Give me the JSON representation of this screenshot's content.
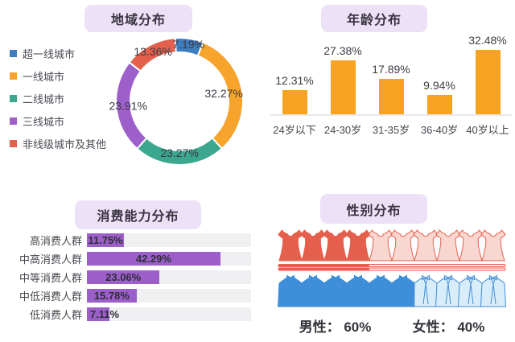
{
  "panels": {
    "region": {
      "title": "地域分布",
      "chart_data": {
        "type": "pie",
        "donut": true,
        "start_angle_deg": -4,
        "legend_position": "left",
        "labels": [
          "超一线城市",
          "一线城市",
          "二线城市",
          "三线城市",
          "非线级城市及其他"
        ],
        "values": [
          7.19,
          32.27,
          23.27,
          23.91,
          13.36
        ],
        "value_labels": [
          "7.19%",
          "32.27%",
          "23.27%",
          "23.91%",
          "13.36%"
        ],
        "colors": [
          "#3d7ec1",
          "#f6a42c",
          "#3aa78e",
          "#9d5fc9",
          "#e2604c"
        ]
      }
    },
    "age": {
      "title": "年龄分布",
      "chart_data": {
        "type": "bar",
        "categories": [
          "24岁以下",
          "24-30岁",
          "31-35岁",
          "36-40岁",
          "40岁以上"
        ],
        "values": [
          12.31,
          27.38,
          17.89,
          9.94,
          32.48
        ],
        "value_labels": [
          "12.31%",
          "27.38%",
          "17.89%",
          "9.94%",
          "32.48%"
        ],
        "bar_color": "#f6a321",
        "ylim": [
          0,
          35
        ],
        "grid": false
      }
    },
    "consumption": {
      "title": "消费能力分布",
      "chart_data": {
        "type": "bar",
        "orientation": "horizontal",
        "categories": [
          "高消费人群",
          "中高消费人群",
          "中等消费人群",
          "中低消费人群",
          "低消费人群"
        ],
        "values": [
          11.75,
          42.29,
          23.06,
          15.78,
          7.11
        ],
        "value_labels": [
          "11.75%",
          "42.29%",
          "23.06%",
          "15.78%",
          "7.11%"
        ],
        "bar_color": "#9c5fc9",
        "track_color": "#f0eff2",
        "xlim": [
          0,
          52
        ]
      }
    },
    "gender": {
      "title": "性别分布",
      "chart_data": {
        "type": "pictogram",
        "icons_per_row": 10,
        "series": [
          {
            "name": "女性",
            "value": 40,
            "icon": "dress",
            "solid_color": "#e5604c",
            "light_color": "#f8d7d1",
            "stripe_light": "#fdece8"
          },
          {
            "name": "男性",
            "value": 60,
            "icon": "suit",
            "solid_color": "#3e8ed9",
            "light_color": "#d9ecf9"
          }
        ]
      },
      "labels": {
        "male_label": "男性：",
        "male_value": "60%",
        "female_label": "女性：",
        "female_value": "40%"
      }
    }
  },
  "theme": {
    "title_bg": "#ece1f6",
    "title_text": "#3a3440",
    "label_text": "#47474f",
    "value_text": "#3c3c44",
    "baseline": "#e8e8e8"
  }
}
